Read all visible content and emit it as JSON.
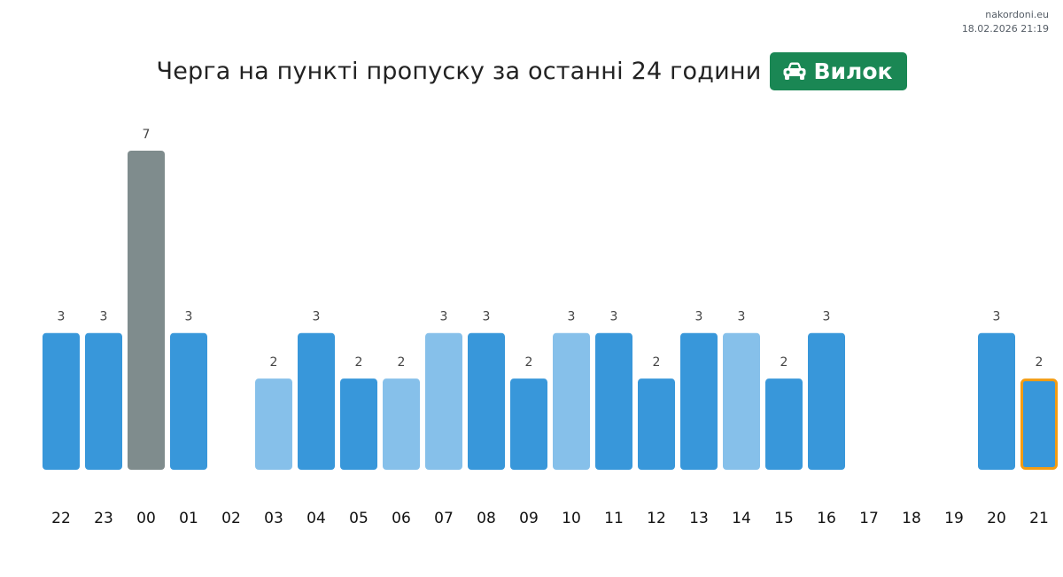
{
  "site": "nakordoni.eu",
  "timestamp": "18.02.2026 21:19",
  "badge_icon": "car-icon",
  "colors": {
    "primary": "#3897da",
    "light": "#86c0ea",
    "gray": "#7f8c8d",
    "highlight_border": "#f39c12",
    "badge": "#1a8754"
  },
  "chart_data": {
    "type": "bar",
    "title": "Черга на пункті пропуску за останні 24 години",
    "badge_label": "Вилок",
    "categories": [
      "22",
      "23",
      "00",
      "01",
      "02",
      "03",
      "04",
      "05",
      "06",
      "07",
      "08",
      "09",
      "10",
      "11",
      "12",
      "13",
      "14",
      "15",
      "16",
      "17",
      "18",
      "19",
      "20",
      "21"
    ],
    "values": [
      3,
      3,
      7,
      3,
      null,
      2,
      3,
      2,
      2,
      3,
      3,
      2,
      3,
      3,
      2,
      3,
      3,
      2,
      3,
      null,
      null,
      null,
      3,
      2
    ],
    "bar_styles": [
      "primary",
      "primary",
      "gray",
      "primary",
      null,
      "light",
      "primary",
      "primary",
      "light",
      "light",
      "primary",
      "primary",
      "light",
      "primary",
      "primary",
      "primary",
      "light",
      "primary",
      "primary",
      null,
      null,
      null,
      "primary",
      "highlight"
    ],
    "ylim": [
      0,
      7
    ],
    "grid": false,
    "legend": "none"
  }
}
